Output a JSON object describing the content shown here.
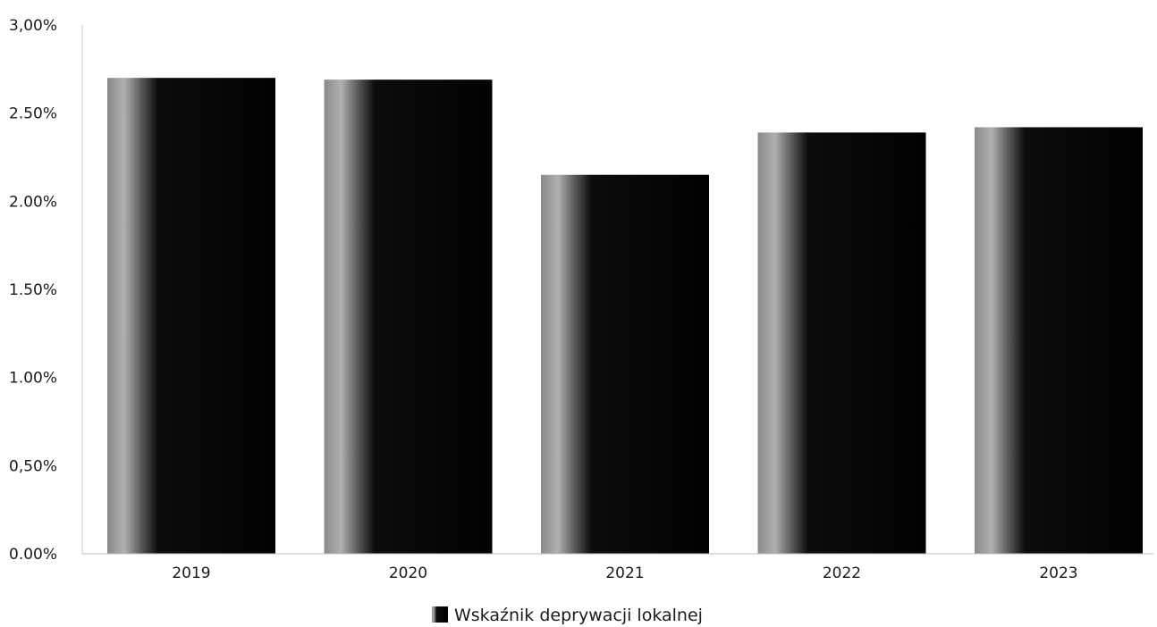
{
  "chart_data": {
    "type": "bar",
    "categories": [
      "2019",
      "2020",
      "2021",
      "2022",
      "2023"
    ],
    "series": [
      {
        "name": "Wskaźnik deprywacji lokalnej",
        "values": [
          2.7,
          2.69,
          2.15,
          2.39,
          2.42
        ]
      }
    ],
    "y_tick_labels": [
      "0.00%",
      "0,50%",
      "1.00%",
      "1.50%",
      "2.00%",
      "2.50%",
      "3,00%"
    ],
    "y_ticks": [
      0,
      0.5,
      1.0,
      1.5,
      2.0,
      2.5,
      3.0
    ],
    "ylim": [
      0,
      3.0
    ],
    "title": "",
    "xlabel": "",
    "ylabel": "",
    "grid": false,
    "legend_position": "bottom",
    "bar_color": "#050505",
    "bar_highlight_color": "#9a9a9a"
  }
}
